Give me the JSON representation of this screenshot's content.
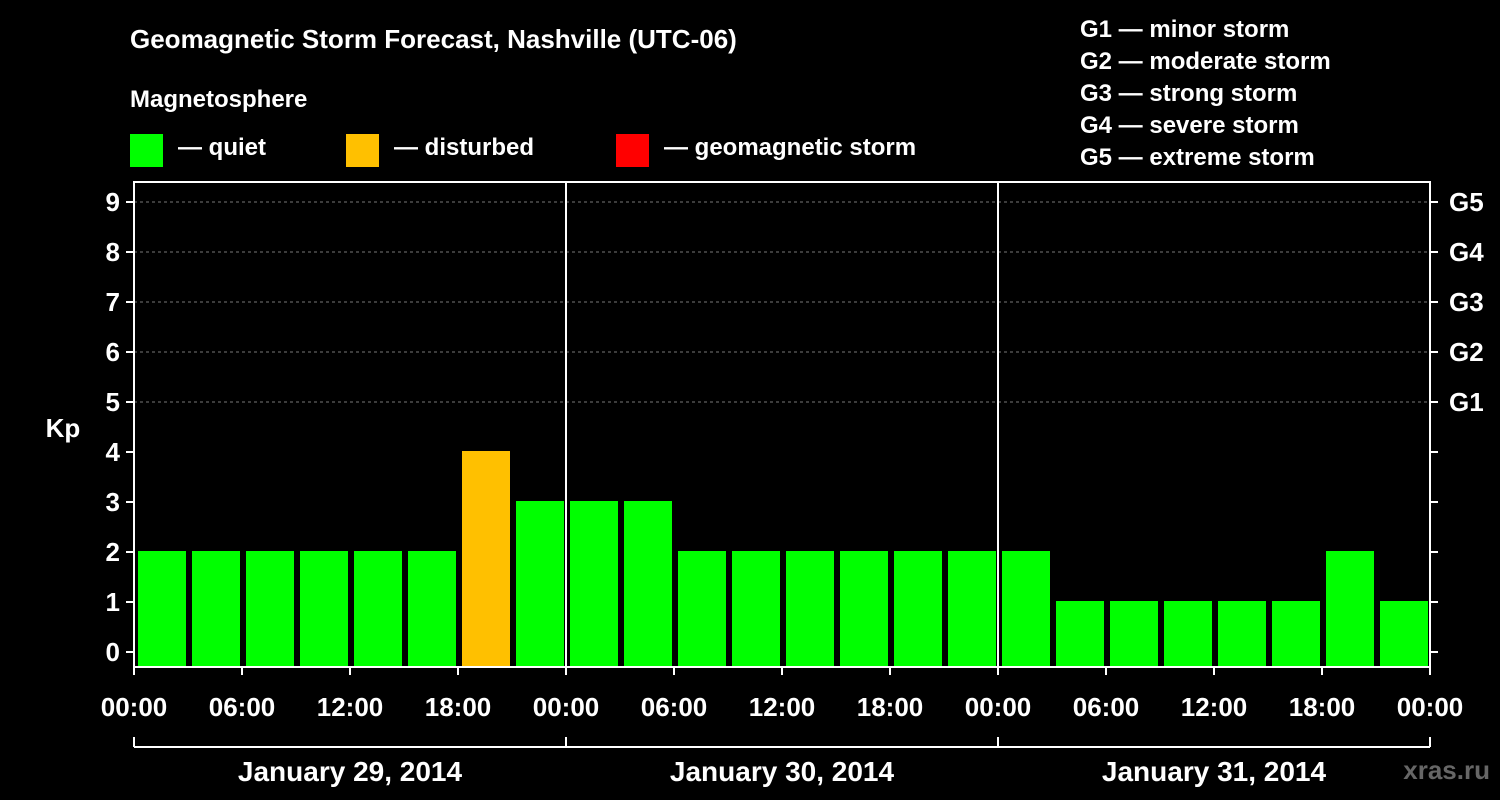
{
  "title": "Geomagnetic Storm Forecast, Nashville (UTC-06)",
  "legend": {
    "title": "Magnetosphere",
    "items": [
      {
        "label": "— quiet",
        "color": "#00ff00"
      },
      {
        "label": "— disturbed",
        "color": "#ffc000"
      },
      {
        "label": "— geomagnetic storm",
        "color": "#ff0000"
      }
    ]
  },
  "g_scale_legend": [
    "G1 — minor storm",
    "G2 — moderate storm",
    "G3 — strong storm",
    "G4 — severe storm",
    "G5 — extreme storm"
  ],
  "credit": "xras.ru",
  "chart_data": {
    "type": "bar",
    "ylabel": "Kp",
    "xlabel": "",
    "ylim": [
      0,
      9
    ],
    "y_ticks": [
      "0",
      "1",
      "2",
      "3",
      "4",
      "5",
      "6",
      "7",
      "8",
      "9"
    ],
    "right_axis_labels": [
      {
        "kp": 5,
        "label": "G1"
      },
      {
        "kp": 6,
        "label": "G2"
      },
      {
        "kp": 7,
        "label": "G3"
      },
      {
        "kp": 8,
        "label": "G4"
      },
      {
        "kp": 9,
        "label": "G5"
      }
    ],
    "x_tick_labels": [
      "00:00",
      "06:00",
      "12:00",
      "18:00",
      "00:00",
      "06:00",
      "12:00",
      "18:00",
      "00:00",
      "06:00",
      "12:00",
      "18:00",
      "00:00"
    ],
    "days": [
      "January 29, 2014",
      "January 30, 2014",
      "January 31, 2014"
    ],
    "interval_hours": 3,
    "values": [
      2,
      2,
      2,
      2,
      2,
      2,
      4,
      3,
      3,
      3,
      2,
      2,
      2,
      2,
      2,
      2,
      2,
      1,
      1,
      1,
      1,
      1,
      2,
      1
    ],
    "levels": [
      "quiet",
      "quiet",
      "quiet",
      "quiet",
      "quiet",
      "quiet",
      "disturbed",
      "quiet",
      "quiet",
      "quiet",
      "quiet",
      "quiet",
      "quiet",
      "quiet",
      "quiet",
      "quiet",
      "quiet",
      "quiet",
      "quiet",
      "quiet",
      "quiet",
      "quiet",
      "quiet",
      "quiet"
    ],
    "level_colors": {
      "quiet": "#00ff00",
      "disturbed": "#ffc000",
      "storm": "#ff0000"
    },
    "grid": true
  }
}
